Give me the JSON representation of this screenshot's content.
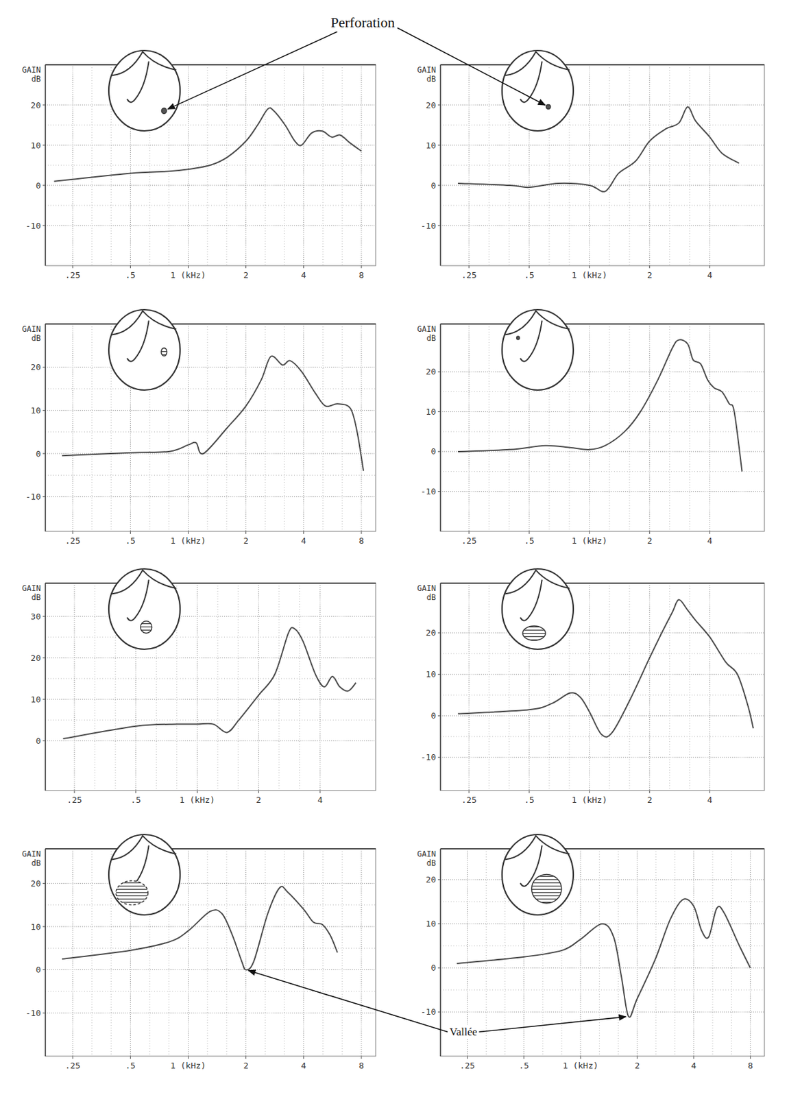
{
  "annotations": [
    {
      "text": "Perforation"
    },
    {
      "text": "Vallée"
    }
  ],
  "chart_data": [
    {
      "type": "line",
      "ylabel": "GAIN dB",
      "log": "x",
      "grid": true,
      "color": "#4a4a4a",
      "xlim": [
        0.18,
        9.5
      ],
      "ylim": [
        -20,
        30
      ],
      "xticks": [
        {
          "value": 0.25,
          "label": ".25"
        },
        {
          "value": 0.5,
          "label": ".5"
        },
        {
          "value": 1,
          "label": "1 (kHz)"
        },
        2,
        4,
        8
      ],
      "yticks": [
        -10,
        0,
        10,
        20
      ],
      "x": [
        0.2,
        0.25,
        0.5,
        0.8,
        1,
        1.3,
        1.6,
        2,
        2.3,
        2.6,
        2.8,
        3.2,
        3.6,
        3.9,
        4.4,
        5,
        5.6,
        6.2,
        7,
        8
      ],
      "values": [
        1,
        1.5,
        3,
        3.5,
        4,
        5,
        7,
        11,
        15,
        19,
        18.5,
        15,
        11,
        10,
        13,
        13.5,
        12,
        12.5,
        10.5,
        8.5
      ]
    },
    {
      "type": "line",
      "ylabel": "GAIN dB",
      "log": "x",
      "grid": true,
      "color": "#4a4a4a",
      "xlim": [
        0.18,
        7.5
      ],
      "ylim": [
        -20,
        30
      ],
      "xticks": [
        {
          "value": 0.25,
          "label": ".25"
        },
        {
          "value": 0.5,
          "label": ".5"
        },
        {
          "value": 1,
          "label": "1 (kHz)"
        },
        2,
        4
      ],
      "yticks": [
        -10,
        0,
        10,
        20
      ],
      "x": [
        0.22,
        0.4,
        0.5,
        0.7,
        1,
        1.2,
        1.4,
        1.7,
        2,
        2.4,
        2.8,
        3.1,
        3.4,
        4,
        4.6,
        5.6
      ],
      "values": [
        0.5,
        0,
        -0.5,
        0.5,
        0,
        -1.5,
        3,
        6,
        11,
        14,
        15.5,
        19.5,
        16,
        12,
        8,
        5.5
      ]
    },
    {
      "type": "line",
      "ylabel": "GAIN dB",
      "log": "x",
      "grid": true,
      "color": "#4a4a4a",
      "xlim": [
        0.18,
        9.5
      ],
      "ylim": [
        -18,
        30
      ],
      "xticks": [
        {
          "value": 0.25,
          "label": ".25"
        },
        {
          "value": 0.5,
          "label": ".5"
        },
        {
          "value": 1,
          "label": "1 (kHz)"
        },
        2,
        4,
        8
      ],
      "yticks": [
        -10,
        0,
        10,
        20
      ],
      "x": [
        0.22,
        0.5,
        0.8,
        1,
        1.1,
        1.2,
        1.6,
        2,
        2.4,
        2.7,
        3.1,
        3.4,
        3.9,
        4.6,
        5.2,
        6,
        7,
        7.6,
        8.2
      ],
      "values": [
        -0.5,
        0.2,
        0.5,
        2,
        2.5,
        0,
        6,
        11,
        17,
        22.5,
        20.5,
        21.5,
        19,
        14,
        11,
        11.5,
        10.5,
        5,
        -4
      ]
    },
    {
      "type": "line",
      "ylabel": "GAIN dB",
      "log": "x",
      "grid": true,
      "color": "#4a4a4a",
      "xlim": [
        0.18,
        7.5
      ],
      "ylim": [
        -20,
        32
      ],
      "xticks": [
        {
          "value": 0.25,
          "label": ".25"
        },
        {
          "value": 0.5,
          "label": ".5"
        },
        {
          "value": 1,
          "label": "1 (kHz)"
        },
        2,
        4
      ],
      "yticks": [
        -10,
        0,
        10,
        20
      ],
      "x": [
        0.22,
        0.4,
        0.6,
        0.8,
        1,
        1.2,
        1.5,
        1.8,
        2.2,
        2.6,
        2.8,
        3.1,
        3.3,
        3.6,
        3.9,
        4.2,
        4.6,
        5,
        5.3,
        5.8
      ],
      "values": [
        0,
        0.5,
        1.5,
        1,
        0.5,
        1.5,
        5,
        10,
        18,
        26,
        28,
        27,
        23,
        22,
        18,
        16,
        15,
        12,
        10,
        -5
      ]
    },
    {
      "type": "line",
      "ylabel": "GAIN dB",
      "log": "x",
      "grid": true,
      "color": "#4a4a4a",
      "xlim": [
        0.18,
        7.5
      ],
      "ylim": [
        -12,
        38
      ],
      "xticks": [
        {
          "value": 0.25,
          "label": ".25"
        },
        {
          "value": 0.5,
          "label": ".5"
        },
        {
          "value": 1,
          "label": "1 (kHz)"
        },
        2,
        4
      ],
      "yticks": [
        0,
        10,
        20,
        30
      ],
      "x": [
        0.22,
        0.5,
        0.8,
        1,
        1.2,
        1.4,
        1.6,
        2,
        2.4,
        2.8,
        3,
        3.3,
        3.8,
        4.2,
        4.6,
        5,
        5.5,
        6
      ],
      "values": [
        0.5,
        3.5,
        4,
        4,
        4,
        2,
        5,
        11,
        16,
        26,
        27,
        24,
        16,
        13,
        15.5,
        13,
        12,
        14
      ]
    },
    {
      "type": "line",
      "ylabel": "GAIN dB",
      "log": "x",
      "grid": true,
      "color": "#4a4a4a",
      "xlim": [
        0.18,
        7.5
      ],
      "ylim": [
        -18,
        32
      ],
      "xticks": [
        {
          "value": 0.25,
          "label": ".25"
        },
        {
          "value": 0.5,
          "label": ".5"
        },
        {
          "value": 1,
          "label": "1 (kHz)"
        },
        2,
        4
      ],
      "yticks": [
        -10,
        0,
        10,
        20
      ],
      "x": [
        0.22,
        0.5,
        0.65,
        0.8,
        0.9,
        1,
        1.15,
        1.3,
        1.6,
        2,
        2.3,
        2.6,
        2.8,
        3.1,
        3.4,
        4,
        4.8,
        5.5,
        6.2,
        6.6
      ],
      "values": [
        0.5,
        1.5,
        3,
        5.5,
        4.5,
        1,
        -4.5,
        -4,
        4,
        14,
        20,
        25,
        28,
        25.5,
        23,
        19,
        13,
        10,
        2.5,
        -3
      ]
    },
    {
      "type": "line",
      "ylabel": "GAIN dB",
      "log": "x",
      "grid": true,
      "color": "#4a4a4a",
      "xlim": [
        0.18,
        9.5
      ],
      "ylim": [
        -20,
        28
      ],
      "xticks": [
        {
          "value": 0.25,
          "label": ".25"
        },
        {
          "value": 0.5,
          "label": ".5"
        },
        {
          "value": 1,
          "label": "1 (kHz)"
        },
        2,
        4,
        8
      ],
      "yticks": [
        -10,
        0,
        10,
        20
      ],
      "x": [
        0.22,
        0.5,
        0.8,
        1,
        1.3,
        1.5,
        1.7,
        1.9,
        2,
        2.2,
        2.6,
        3,
        3.3,
        4,
        4.5,
        5,
        5.5,
        6
      ],
      "values": [
        2.5,
        4.5,
        6.5,
        9,
        13.5,
        13,
        8,
        2,
        0,
        2,
        13,
        19,
        18,
        14,
        11,
        10.5,
        8,
        4
      ]
    },
    {
      "type": "line",
      "ylabel": "GAIN dB",
      "log": "x",
      "grid": true,
      "color": "#4a4a4a",
      "xlim": [
        0.18,
        9.5
      ],
      "ylim": [
        -20,
        27
      ],
      "xticks": [
        {
          "value": 0.25,
          "label": ".25"
        },
        {
          "value": 0.5,
          "label": ".5"
        },
        {
          "value": 1,
          "label": "1 (kHz)"
        },
        2,
        4,
        8
      ],
      "yticks": [
        -10,
        0,
        10,
        20
      ],
      "x": [
        0.22,
        0.5,
        0.8,
        1,
        1.3,
        1.5,
        1.65,
        1.8,
        2,
        2.5,
        3,
        3.5,
        4,
        4.4,
        4.8,
        5.3,
        5.8,
        7,
        8
      ],
      "values": [
        1,
        2.5,
        4,
        6.5,
        10,
        7,
        -2,
        -11,
        -7,
        2,
        11,
        15.5,
        14,
        8.5,
        7,
        13.5,
        12.5,
        5,
        0
      ]
    }
  ]
}
